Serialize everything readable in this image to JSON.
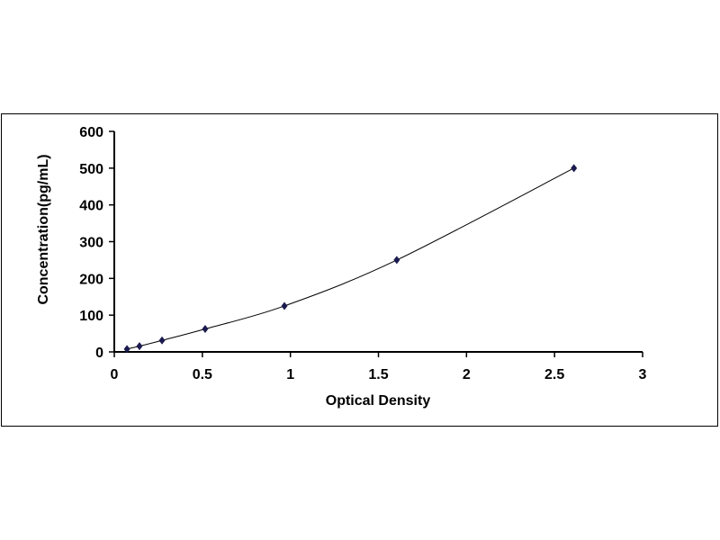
{
  "chart_data": {
    "type": "line",
    "title": "",
    "xlabel": "Optical Density",
    "ylabel": "Concentration(pg/mL)",
    "xlim": [
      0,
      3
    ],
    "ylim": [
      0,
      600
    ],
    "xticks": [
      "0",
      "0.5",
      "1",
      "1.5",
      "2",
      "2.5",
      "3"
    ],
    "yticks": [
      "0",
      "100",
      "200",
      "300",
      "400",
      "500",
      "600"
    ],
    "grid": false,
    "legend": "none",
    "series": [
      {
        "x": [
          0.072,
          0.143,
          0.271,
          0.516,
          0.966,
          1.604,
          2.61
        ],
        "y": [
          7.8,
          15.6,
          31.25,
          62.5,
          125,
          250,
          500
        ],
        "color": "#1a1a4e",
        "marker": "diamond",
        "line": "smooth"
      }
    ]
  }
}
